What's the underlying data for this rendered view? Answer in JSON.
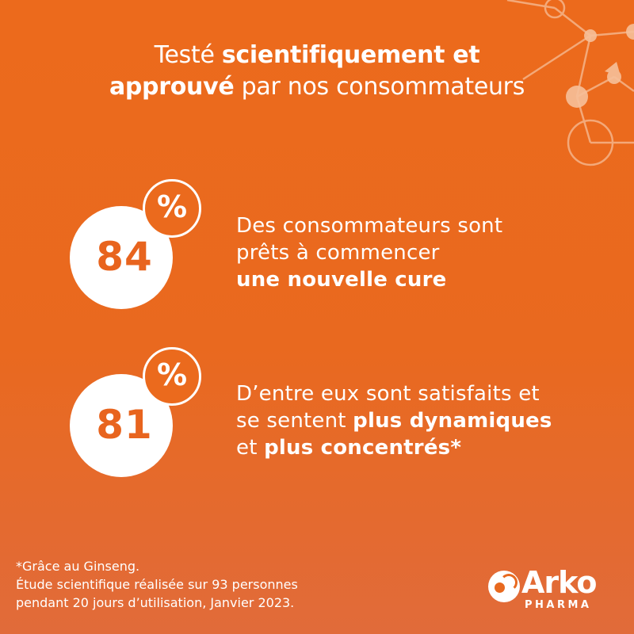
{
  "headline": {
    "line1_prefix": "Testé ",
    "line1_bold": "scientifiquement et",
    "line2_bold": "approuvé",
    "line2_suffix": " par nos consommateurs"
  },
  "stats": [
    {
      "value": "84",
      "percent_sign": "%",
      "line1": "Des consommateurs sont",
      "line2": "prêts à commencer",
      "line3_bold": "une nouvelle cure"
    },
    {
      "value": "81",
      "percent_sign": "%",
      "line1": "D’entre eux sont satisfaits et",
      "line2_prefix": "se sentent ",
      "line2_bold": "plus dynamiques",
      "line3_prefix": "et ",
      "line3_bold": "plus concentrés*"
    }
  ],
  "footnote": {
    "line1": "*Grâce au Ginseng.",
    "line2": "Étude scientifique réalisée sur 93 personnes",
    "line3": "pendant 20 jours d’utilisation, Janvier 2023."
  },
  "logo": {
    "brand": "Arko",
    "sub": "PHARMA"
  },
  "colors": {
    "background": "#ec6a1c",
    "text": "#ffffff",
    "accent": "#e8641e"
  },
  "icons": {
    "decoration": "molecule-network-icon",
    "logo_mark": "arko-swoosh-icon"
  }
}
